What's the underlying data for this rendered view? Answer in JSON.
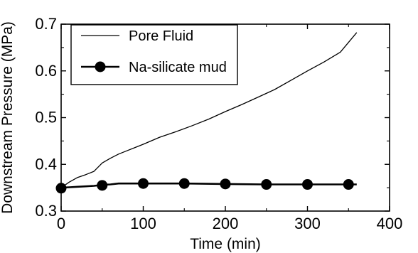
{
  "chart_data": {
    "type": "line",
    "xlabel": "Time (min)",
    "ylabel": "Downstream Pressure (MPa)",
    "xlim": [
      0,
      400
    ],
    "ylim": [
      0.3,
      0.7
    ],
    "xticks": [
      0,
      100,
      200,
      300,
      400
    ],
    "yticks": [
      0.3,
      0.4,
      0.5,
      0.6,
      0.7
    ],
    "xtick_labels": [
      "0",
      "100",
      "200",
      "300",
      "400"
    ],
    "ytick_labels": [
      "0.3",
      "0.4",
      "0.5",
      "0.6",
      "0.7"
    ],
    "grid": false,
    "legend_position": "top-left",
    "series": [
      {
        "name": "Pore Fluid",
        "marker": "none",
        "color": "#000000",
        "x": [
          0,
          10,
          20,
          30,
          40,
          50,
          60,
          70,
          80,
          90,
          100,
          120,
          140,
          160,
          180,
          200,
          220,
          240,
          260,
          280,
          300,
          320,
          340,
          360
        ],
        "y": [
          0.35,
          0.362,
          0.372,
          0.378,
          0.385,
          0.403,
          0.413,
          0.422,
          0.429,
          0.436,
          0.443,
          0.458,
          0.47,
          0.483,
          0.497,
          0.513,
          0.528,
          0.544,
          0.56,
          0.58,
          0.6,
          0.619,
          0.64,
          0.682
        ]
      },
      {
        "name": "Na-silicate mud",
        "marker": "circle",
        "color": "#000000",
        "x": [
          0,
          10,
          20,
          30,
          40,
          50,
          60,
          70,
          80,
          90,
          100,
          150,
          200,
          250,
          300,
          350,
          360
        ],
        "y": [
          0.35,
          0.351,
          0.352,
          0.353,
          0.354,
          0.356,
          0.357,
          0.359,
          0.359,
          0.359,
          0.359,
          0.359,
          0.358,
          0.357,
          0.357,
          0.357,
          0.357
        ],
        "marker_x": [
          0,
          50,
          100,
          150,
          200,
          250,
          300,
          350
        ],
        "marker_y": [
          0.349,
          0.355,
          0.359,
          0.359,
          0.358,
          0.357,
          0.357,
          0.357
        ]
      }
    ]
  }
}
